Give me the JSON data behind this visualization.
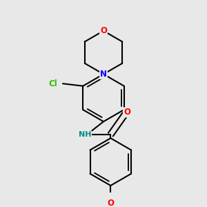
{
  "background_color": "#e8e8e8",
  "bond_color": "#000000",
  "bond_width": 1.5,
  "atom_colors": {
    "O": "#ff0000",
    "N": "#0000ff",
    "Cl": "#33bb00",
    "NH": "#008888",
    "C": "#000000"
  },
  "figsize": [
    3.0,
    3.0
  ],
  "dpi": 100
}
